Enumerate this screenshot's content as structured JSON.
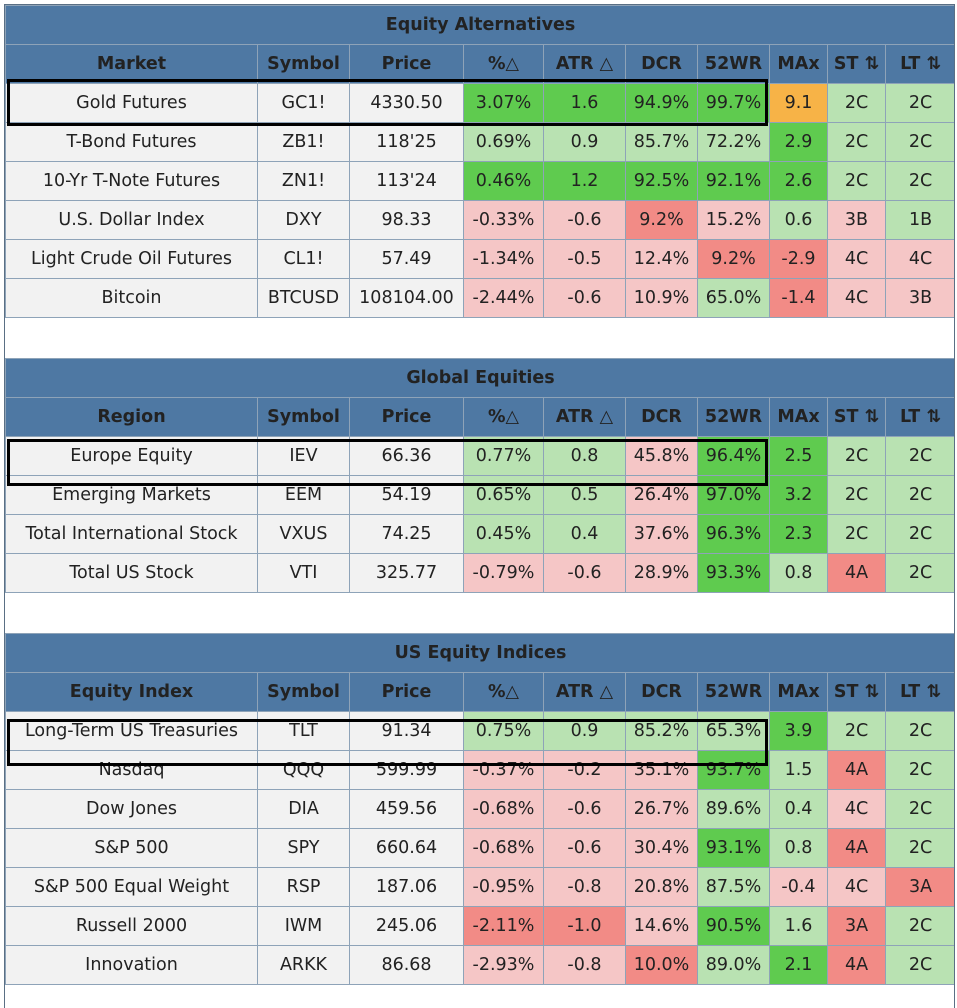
{
  "colors": {
    "header_bg": "#4e78a3",
    "strong_green": "#5fcb4f",
    "light_green": "#b9e2b2",
    "light_red": "#f5c6c6",
    "strong_red": "#f28b86",
    "orange": "#f7b347",
    "plain": "#f2f2f2"
  },
  "sections": [
    {
      "title": "Equity Alternatives",
      "headers": [
        "Market",
        "Symbol",
        "Price",
        "%△",
        "ATR △",
        "DCR",
        "52WR",
        "MAx",
        "ST ⇅",
        "LT ⇅"
      ],
      "rows": [
        {
          "cells": [
            "Gold Futures",
            "GC1!",
            "4330.50",
            "3.07%",
            "1.6",
            "94.9%",
            "99.7%",
            "9.1",
            "2C",
            "2C"
          ],
          "colors": [
            "plain",
            "plain",
            "plain",
            "dg",
            "dg",
            "dg",
            "dg",
            "or",
            "lg",
            "lg"
          ]
        },
        {
          "cells": [
            "T-Bond Futures",
            "ZB1!",
            "118'25",
            "0.69%",
            "0.9",
            "85.7%",
            "72.2%",
            "2.9",
            "2C",
            "2C"
          ],
          "colors": [
            "plain",
            "plain",
            "plain",
            "lg",
            "lg",
            "lg",
            "lg",
            "dg",
            "lg",
            "lg"
          ]
        },
        {
          "cells": [
            "10-Yr T-Note Futures",
            "ZN1!",
            "113'24",
            "0.46%",
            "1.2",
            "92.5%",
            "92.1%",
            "2.6",
            "2C",
            "2C"
          ],
          "colors": [
            "plain",
            "plain",
            "plain",
            "dg",
            "dg",
            "dg",
            "dg",
            "dg",
            "lg",
            "lg"
          ]
        },
        {
          "cells": [
            "U.S. Dollar Index",
            "DXY",
            "98.33",
            "-0.33%",
            "-0.6",
            "9.2%",
            "15.2%",
            "0.6",
            "3B",
            "1B"
          ],
          "colors": [
            "plain",
            "plain",
            "plain",
            "lr",
            "lr",
            "dr",
            "lr",
            "lg",
            "lr",
            "lg"
          ]
        },
        {
          "cells": [
            "Light Crude Oil Futures",
            "CL1!",
            "57.49",
            "-1.34%",
            "-0.5",
            "12.4%",
            "9.2%",
            "-2.9",
            "4C",
            "4C"
          ],
          "colors": [
            "plain",
            "plain",
            "plain",
            "lr",
            "lr",
            "lr",
            "dr",
            "dr",
            "lr",
            "lr"
          ]
        },
        {
          "cells": [
            "Bitcoin",
            "BTCUSD",
            "108104.00",
            "-2.44%",
            "-0.6",
            "10.9%",
            "65.0%",
            "-1.4",
            "4C",
            "3B"
          ],
          "colors": [
            "plain",
            "plain",
            "plain",
            "lr",
            "lr",
            "lr",
            "lg",
            "dr",
            "lr",
            "lr"
          ]
        }
      ]
    },
    {
      "title": "Global Equities",
      "headers": [
        "Region",
        "Symbol",
        "Price",
        "%△",
        "ATR △",
        "DCR",
        "52WR",
        "MAx",
        "ST ⇅",
        "LT ⇅"
      ],
      "rows": [
        {
          "cells": [
            "Europe Equity",
            "IEV",
            "66.36",
            "0.77%",
            "0.8",
            "45.8%",
            "96.4%",
            "2.5",
            "2C",
            "2C"
          ],
          "colors": [
            "plain",
            "plain",
            "plain",
            "lg",
            "lg",
            "lr",
            "dg",
            "dg",
            "lg",
            "lg"
          ]
        },
        {
          "cells": [
            "Emerging Markets",
            "EEM",
            "54.19",
            "0.65%",
            "0.5",
            "26.4%",
            "97.0%",
            "3.2",
            "2C",
            "2C"
          ],
          "colors": [
            "plain",
            "plain",
            "plain",
            "lg",
            "lg",
            "lr",
            "dg",
            "dg",
            "lg",
            "lg"
          ]
        },
        {
          "cells": [
            "Total International Stock",
            "VXUS",
            "74.25",
            "0.45%",
            "0.4",
            "37.6%",
            "96.3%",
            "2.3",
            "2C",
            "2C"
          ],
          "colors": [
            "plain",
            "plain",
            "plain",
            "lg",
            "lg",
            "lr",
            "dg",
            "dg",
            "lg",
            "lg"
          ]
        },
        {
          "cells": [
            "Total US Stock",
            "VTI",
            "325.77",
            "-0.79%",
            "-0.6",
            "28.9%",
            "93.3%",
            "0.8",
            "4A",
            "2C"
          ],
          "colors": [
            "plain",
            "plain",
            "plain",
            "lr",
            "lr",
            "lr",
            "dg",
            "lg",
            "dr",
            "lg"
          ]
        }
      ]
    },
    {
      "title": "US Equity Indices",
      "headers": [
        "Equity Index",
        "Symbol",
        "Price",
        "%△",
        "ATR △",
        "DCR",
        "52WR",
        "MAx",
        "ST ⇅",
        "LT ⇅"
      ],
      "rows": [
        {
          "cells": [
            "Long-Term US Treasuries",
            "TLT",
            "91.34",
            "0.75%",
            "0.9",
            "85.2%",
            "65.3%",
            "3.9",
            "2C",
            "2C"
          ],
          "colors": [
            "plain",
            "plain",
            "plain",
            "lg",
            "lg",
            "lg",
            "lg",
            "dg",
            "lg",
            "lg"
          ]
        },
        {
          "cells": [
            "Nasdaq",
            "QQQ",
            "599.99",
            "-0.37%",
            "-0.2",
            "35.1%",
            "93.7%",
            "1.5",
            "4A",
            "2C"
          ],
          "colors": [
            "plain",
            "plain",
            "plain",
            "lr",
            "lr",
            "lr",
            "dg",
            "lg",
            "dr",
            "lg"
          ]
        },
        {
          "cells": [
            "Dow Jones",
            "DIA",
            "459.56",
            "-0.68%",
            "-0.6",
            "26.7%",
            "89.6%",
            "0.4",
            "4C",
            "2C"
          ],
          "colors": [
            "plain",
            "plain",
            "plain",
            "lr",
            "lr",
            "lr",
            "lg",
            "lg",
            "lr",
            "lg"
          ]
        },
        {
          "cells": [
            "S&P 500",
            "SPY",
            "660.64",
            "-0.68%",
            "-0.6",
            "30.4%",
            "93.1%",
            "0.8",
            "4A",
            "2C"
          ],
          "colors": [
            "plain",
            "plain",
            "plain",
            "lr",
            "lr",
            "lr",
            "dg",
            "lg",
            "dr",
            "lg"
          ]
        },
        {
          "cells": [
            "S&P 500 Equal Weight",
            "RSP",
            "187.06",
            "-0.95%",
            "-0.8",
            "20.8%",
            "87.5%",
            "-0.4",
            "4C",
            "3A"
          ],
          "colors": [
            "plain",
            "plain",
            "plain",
            "lr",
            "lr",
            "lr",
            "lg",
            "lr",
            "lr",
            "dr"
          ]
        },
        {
          "cells": [
            "Russell 2000",
            "IWM",
            "245.06",
            "-2.11%",
            "-1.0",
            "14.6%",
            "90.5%",
            "1.6",
            "3A",
            "2C"
          ],
          "colors": [
            "plain",
            "plain",
            "plain",
            "dr",
            "dr",
            "lr",
            "dg",
            "lg",
            "dr",
            "lg"
          ]
        },
        {
          "cells": [
            "Innovation",
            "ARKK",
            "86.68",
            "-2.93%",
            "-0.8",
            "10.0%",
            "89.0%",
            "2.1",
            "4A",
            "2C"
          ],
          "colors": [
            "plain",
            "plain",
            "plain",
            "lr",
            "lr",
            "dr",
            "lg",
            "dg",
            "dr",
            "lg"
          ]
        }
      ]
    }
  ]
}
